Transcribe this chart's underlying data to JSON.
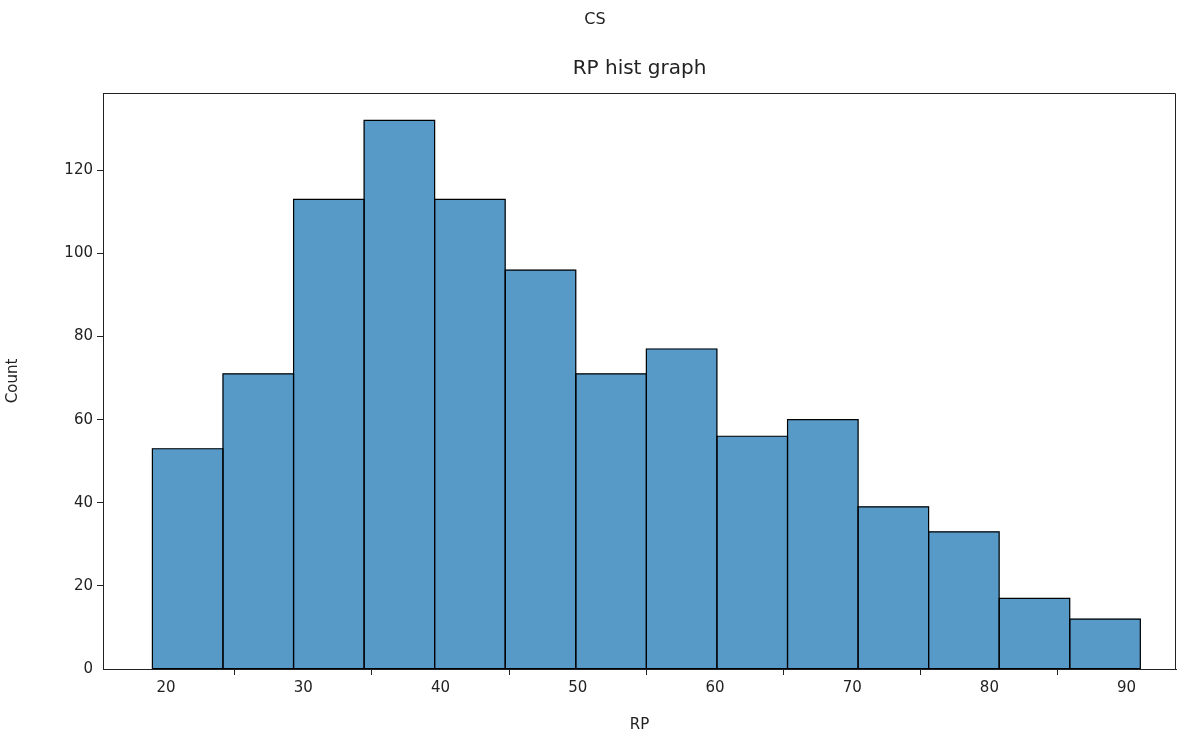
{
  "chart_data": {
    "type": "histogram",
    "title": "CS",
    "subtitle": "RP hist graph",
    "xlabel": "RP",
    "ylabel": "Count",
    "bins": [
      19,
      24.14,
      29.29,
      34.43,
      39.57,
      44.71,
      49.86,
      55,
      60.14,
      65.29,
      70.43,
      75.57,
      80.71,
      85.86,
      91
    ],
    "values": [
      53,
      71,
      113,
      132,
      113,
      96,
      71,
      77,
      56,
      60,
      39,
      33,
      17,
      12
    ],
    "color": "#5799c7",
    "xlim": [
      15.4,
      93.6
    ],
    "xticks": [
      20,
      30,
      40,
      50,
      60,
      70,
      80,
      90
    ],
    "ylim": [
      0,
      138.6
    ],
    "yticks": [
      0,
      20,
      40,
      60,
      80,
      100,
      120
    ],
    "grid": false,
    "legend": false
  }
}
